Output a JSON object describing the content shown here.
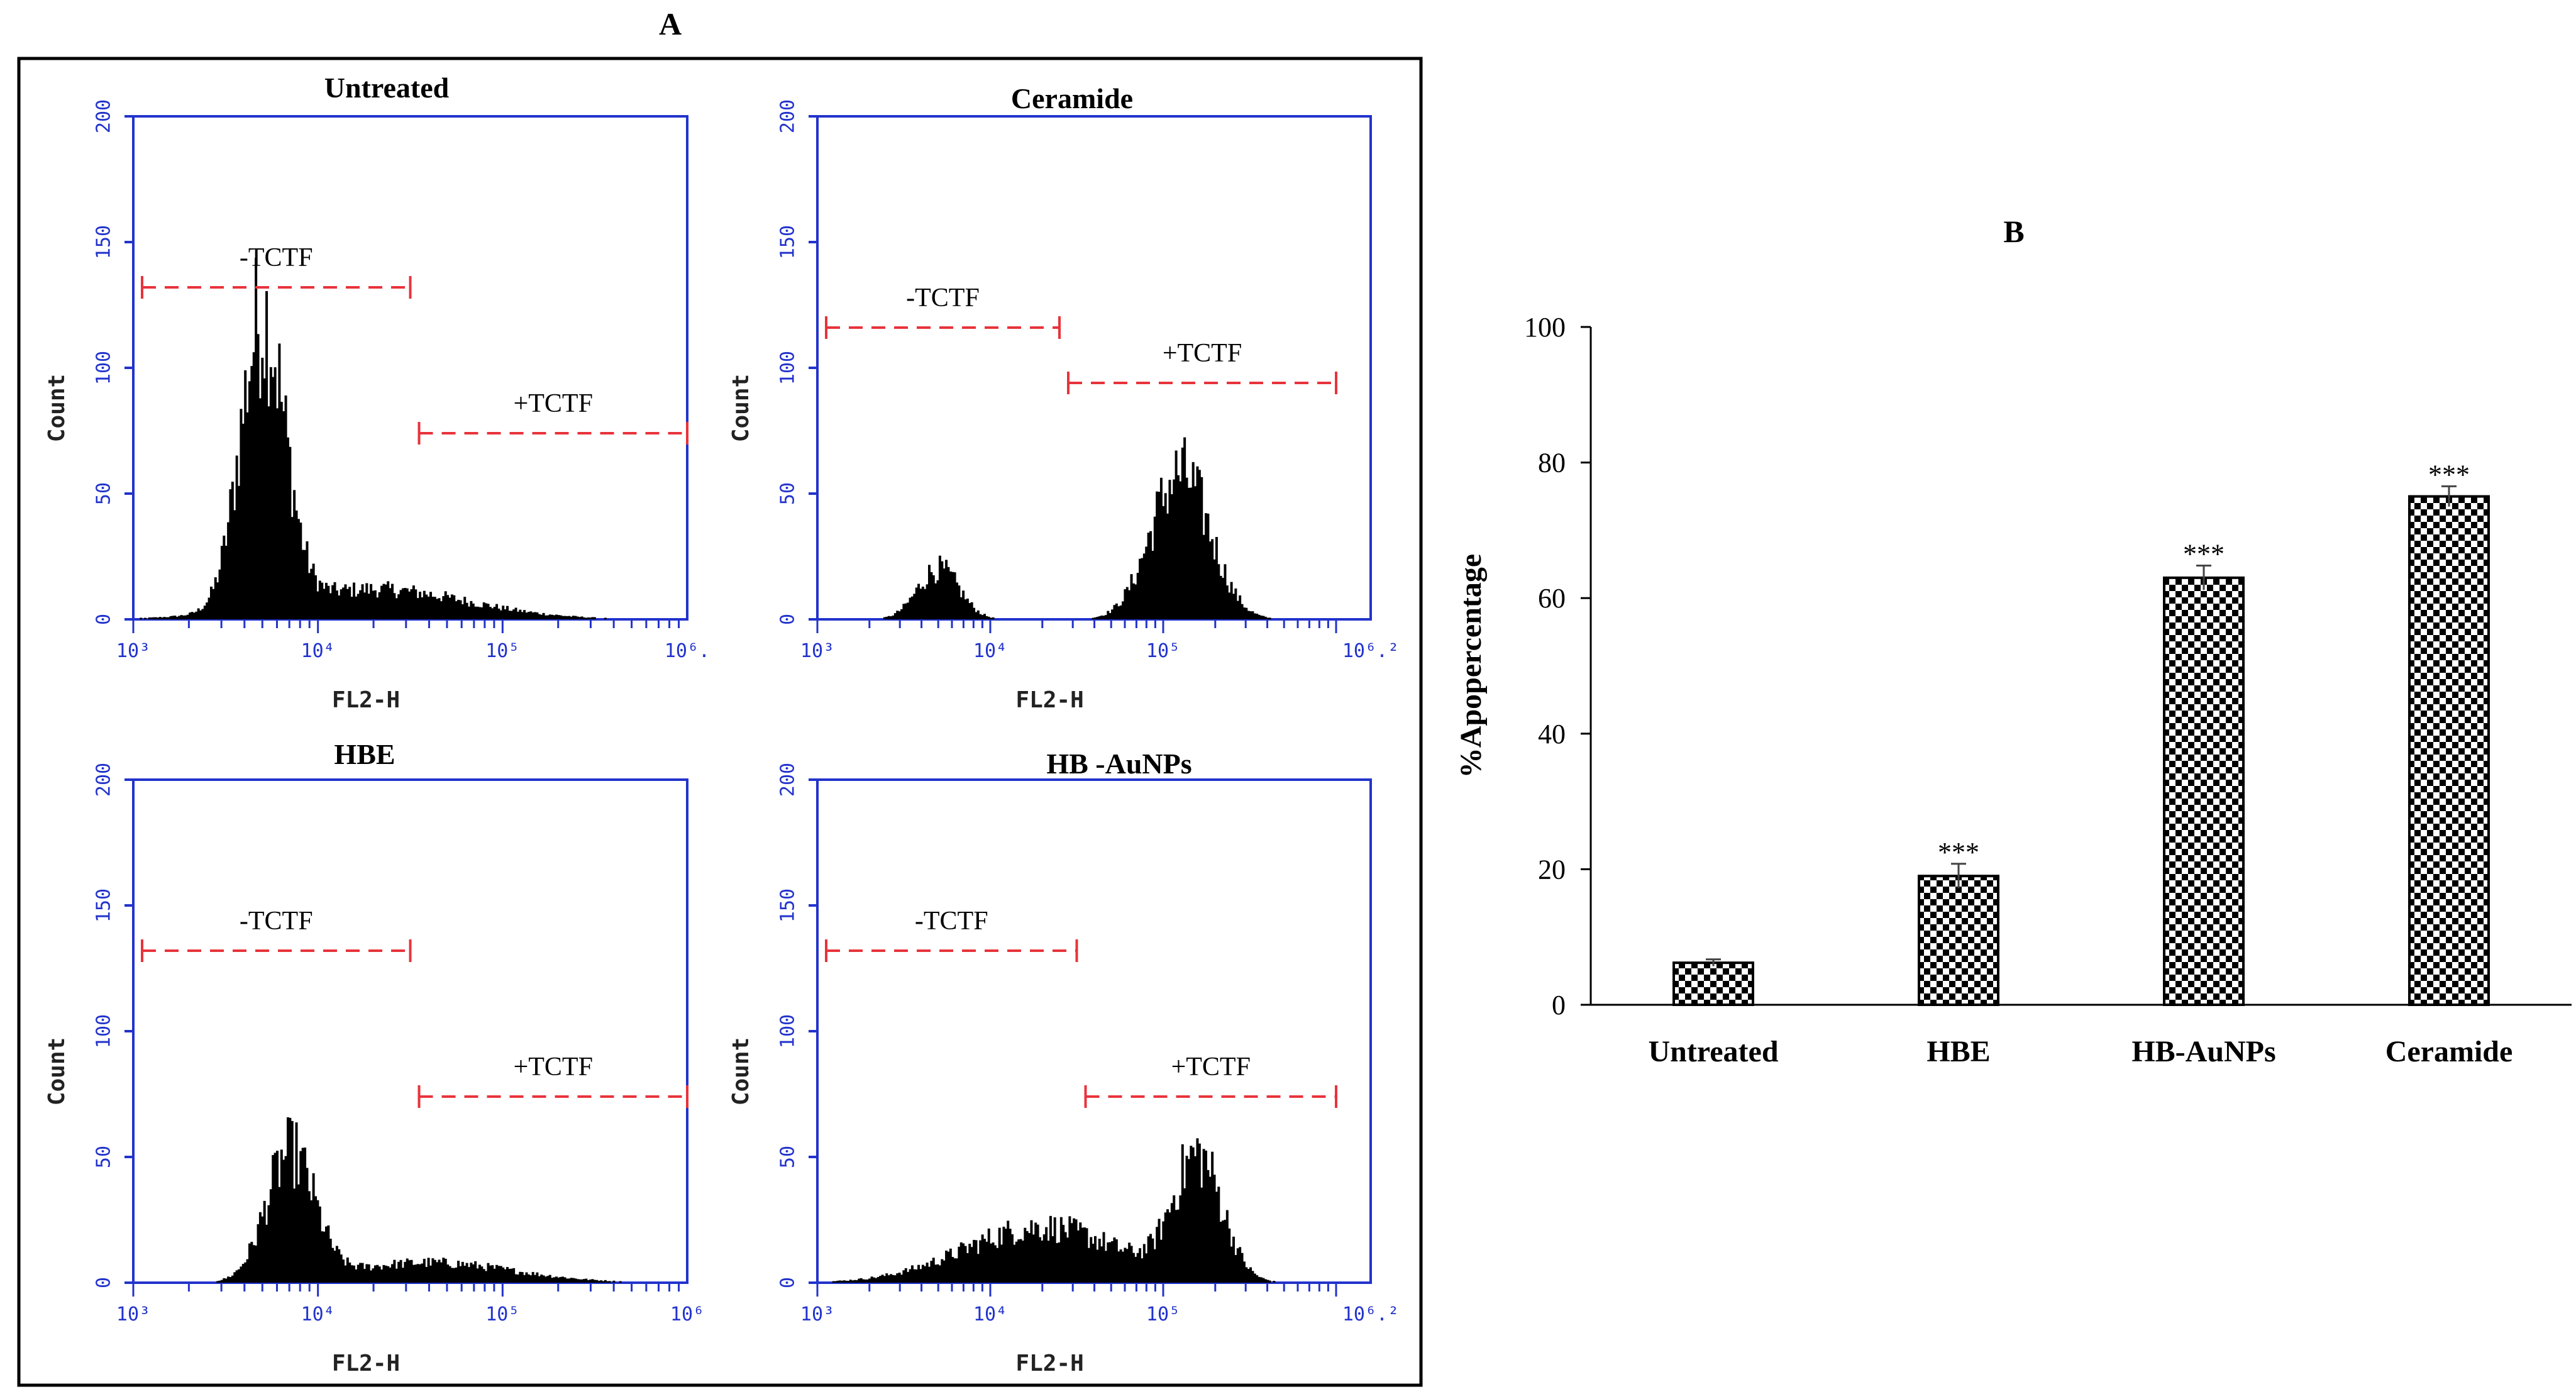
{
  "panel_a_label": "A",
  "panel_b_label": "B",
  "chart_data": [
    {
      "type": "histogram",
      "title": "Untreated",
      "xlabel": "FL2-H",
      "ylabel": "Count",
      "y_ticks": [
        "0",
        "50",
        "100",
        "150",
        "200"
      ],
      "x_ticks": [
        "10³",
        "10⁴",
        "10⁵",
        "10⁶."
      ],
      "x_log_range": [
        3,
        6
      ],
      "ylim": [
        0,
        200
      ],
      "gates": [
        {
          "label": "-TCTF",
          "x_range": [
            3.0,
            4.5
          ],
          "level": 132
        },
        {
          "label": "+TCTF",
          "x_range": [
            4.5,
            6.0
          ],
          "level": 74
        }
      ],
      "peaks": [
        {
          "center": 3.7,
          "height": 115,
          "width": 0.12
        },
        {
          "center": 4.3,
          "height": 12,
          "width": 0.5
        }
      ]
    },
    {
      "type": "histogram",
      "title": "Ceramide",
      "xlabel": "FL2-H",
      "ylabel": "Count",
      "y_ticks": [
        "0",
        "50",
        "100",
        "150",
        "200"
      ],
      "x_ticks": [
        "10³",
        "10⁴",
        "10⁵",
        "10⁶.²"
      ],
      "x_log_range": [
        3,
        6.2
      ],
      "ylim": [
        0,
        200
      ],
      "gates": [
        {
          "label": "-TCTF",
          "x_range": [
            3.0,
            4.4
          ],
          "level": 116
        },
        {
          "label": "+TCTF",
          "x_range": [
            4.4,
            6.0
          ],
          "level": 94
        }
      ],
      "peaks": [
        {
          "center": 3.7,
          "height": 20,
          "width": 0.12
        },
        {
          "center": 5.1,
          "height": 58,
          "width": 0.17
        }
      ]
    },
    {
      "type": "histogram",
      "title": "HBE",
      "xlabel": "FL2-H",
      "ylabel": "Count",
      "y_ticks": [
        "0",
        "50",
        "100",
        "150",
        "200"
      ],
      "x_ticks": [
        "10³",
        "10⁴",
        "10⁵",
        "10⁶"
      ],
      "x_log_range": [
        3,
        6
      ],
      "ylim": [
        0,
        200
      ],
      "gates": [
        {
          "label": "-TCTF",
          "x_range": [
            3.0,
            4.5
          ],
          "level": 132
        },
        {
          "label": "+TCTF",
          "x_range": [
            4.5,
            6.0
          ],
          "level": 74
        }
      ],
      "peaks": [
        {
          "center": 3.85,
          "height": 50,
          "width": 0.13
        },
        {
          "center": 4.6,
          "height": 8,
          "width": 0.45
        }
      ]
    },
    {
      "type": "histogram",
      "title": "HB -AuNPs",
      "xlabel": "FL2-H",
      "ylabel": "Count",
      "y_ticks": [
        "0",
        "50",
        "100",
        "150",
        "200"
      ],
      "x_ticks": [
        "10³",
        "10⁴",
        "10⁵",
        "10⁶.²"
      ],
      "x_log_range": [
        3,
        6.2
      ],
      "ylim": [
        0,
        200
      ],
      "gates": [
        {
          "label": "-TCTF",
          "x_range": [
            3.0,
            4.5
          ],
          "level": 132
        },
        {
          "label": "+TCTF",
          "x_range": [
            4.5,
            6.0
          ],
          "level": 74
        }
      ],
      "peaks": [
        {
          "center": 4.3,
          "height": 22,
          "width": 0.45
        },
        {
          "center": 5.2,
          "height": 48,
          "width": 0.14
        }
      ]
    },
    {
      "type": "bar",
      "title": "B",
      "xlabel": "",
      "ylabel": "%Apopercentage",
      "categories": [
        "Untreated",
        "HBE",
        "HB-AuNPs",
        "Ceramide"
      ],
      "values": [
        6.2,
        19.0,
        63.0,
        75.0
      ],
      "errors": [
        0.5,
        1.8,
        1.8,
        1.5
      ],
      "significance": [
        "",
        "***",
        "***",
        "***"
      ],
      "ylim": [
        0,
        100
      ],
      "y_ticks": [
        "0",
        "20",
        "40",
        "60",
        "80",
        "100"
      ],
      "pattern": "checkerboard"
    }
  ]
}
